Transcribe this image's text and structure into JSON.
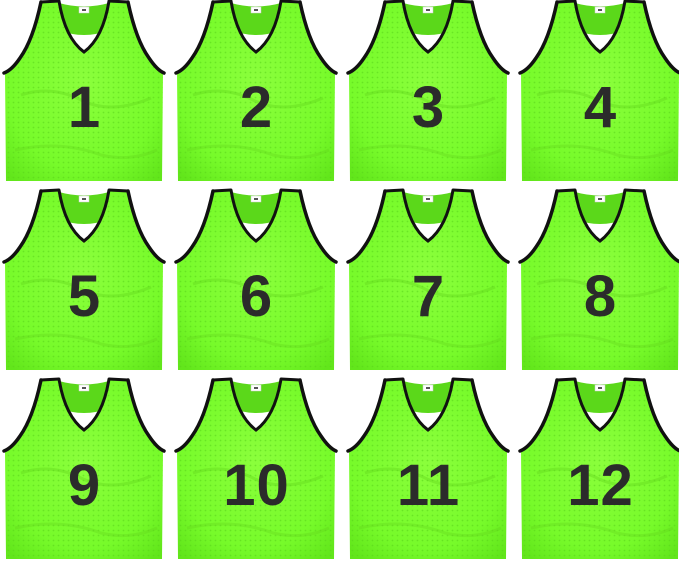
{
  "bibs": [
    {
      "number": "1"
    },
    {
      "number": "2"
    },
    {
      "number": "3"
    },
    {
      "number": "4"
    },
    {
      "number": "5"
    },
    {
      "number": "6"
    },
    {
      "number": "7"
    },
    {
      "number": "8"
    },
    {
      "number": "9"
    },
    {
      "number": "10"
    },
    {
      "number": "11"
    },
    {
      "number": "12"
    }
  ],
  "colors": {
    "bib_fill": "#7dff2e",
    "bib_shade": "#64e81c",
    "mesh_dark": "#4fc814",
    "trim": "#111111",
    "number": "#2b2b2b",
    "background": "#ffffff"
  },
  "icons": {
    "bib": "mesh-training-vest",
    "tag": "size-label-tag"
  }
}
